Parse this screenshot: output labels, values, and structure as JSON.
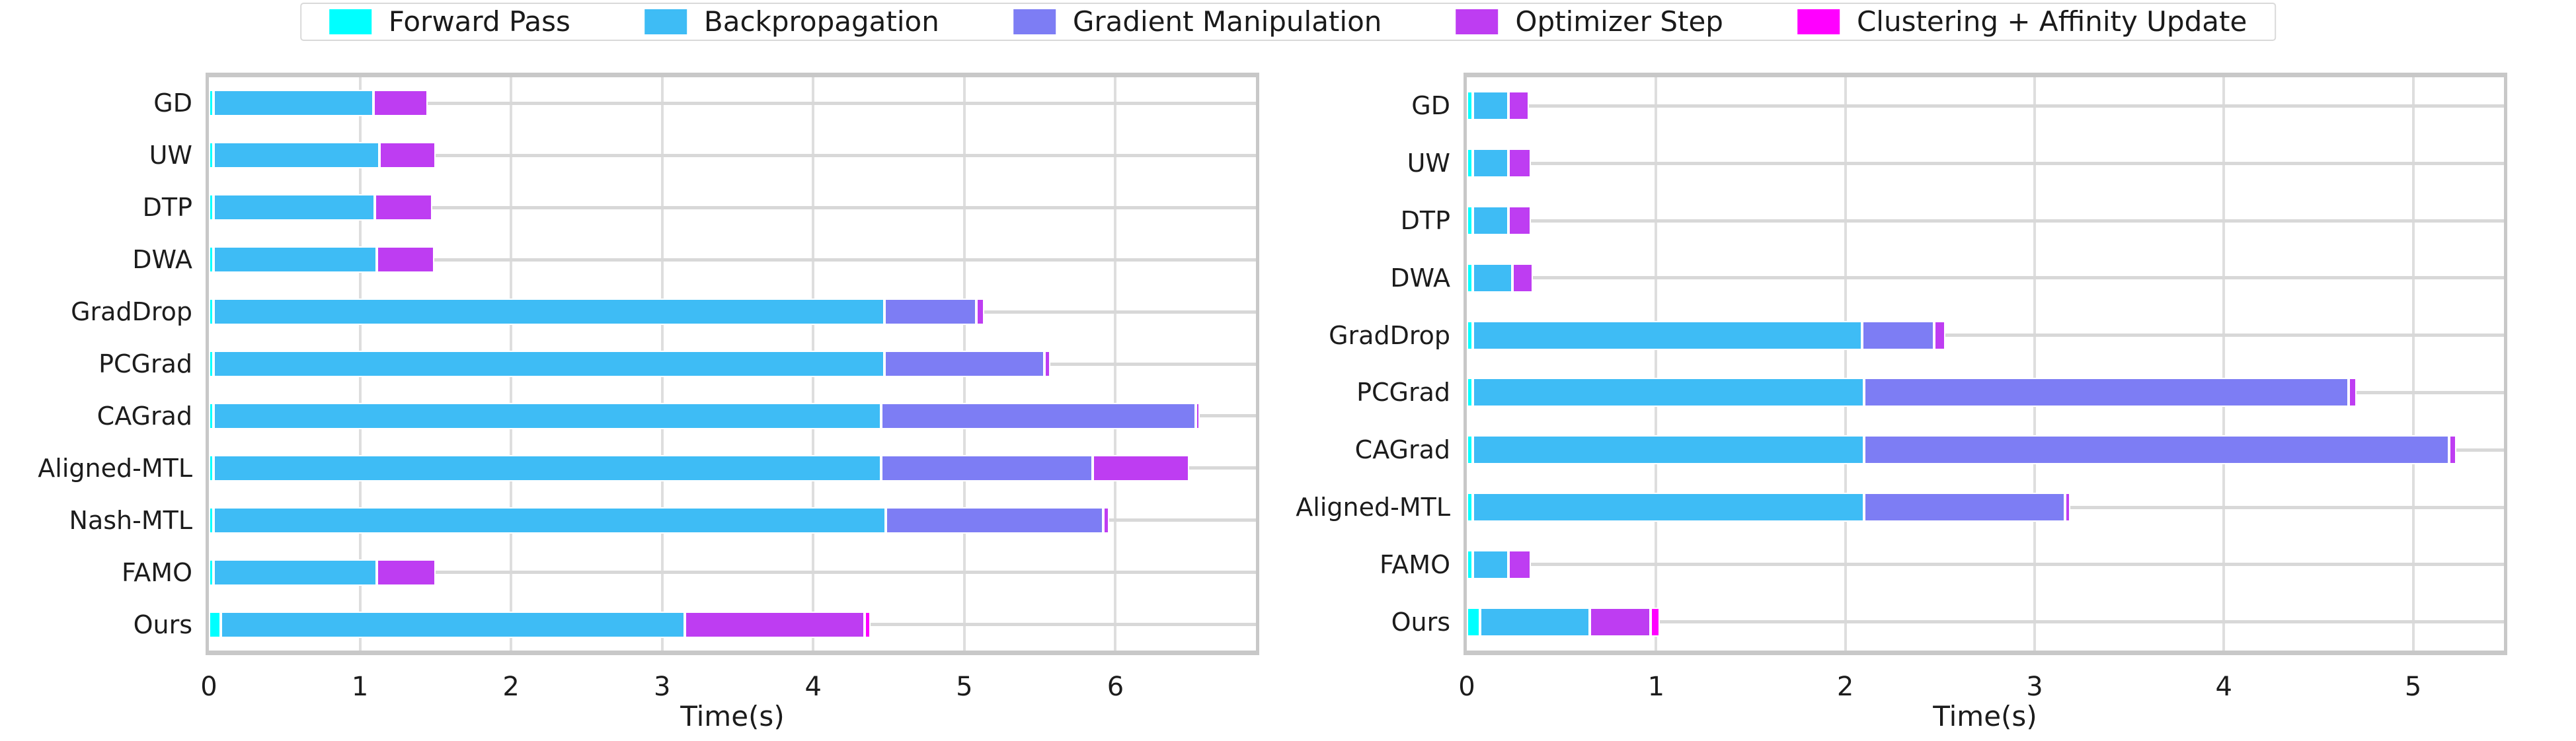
{
  "legend": {
    "items": [
      {
        "label": "Forward Pass",
        "color": "#00FFFF"
      },
      {
        "label": "Backpropagation",
        "color": "#3EBCF5"
      },
      {
        "label": "Gradient Manipulation",
        "color": "#7D7DF4"
      },
      {
        "label": "Optimizer Step",
        "color": "#BE3DF2"
      },
      {
        "label": "Clustering + Affinity Update",
        "color": "#FF00FF"
      }
    ]
  },
  "chart_data": [
    {
      "type": "bar",
      "orientation": "horizontal_stacked",
      "title": "",
      "xlabel": "Time(s)",
      "ylabel": "",
      "xlim": [
        0,
        6.93
      ],
      "xticks": [
        0,
        1,
        2,
        3,
        4,
        5,
        6
      ],
      "grid": true,
      "legend_position": "shared top center",
      "categories": [
        "GD",
        "UW",
        "DTP",
        "DWA",
        "GradDrop",
        "PCGrad",
        "CAGrad",
        "Aligned-MTL",
        "Nash-MTL",
        "FAMO",
        "Ours"
      ],
      "series": [
        {
          "name": "Forward Pass",
          "color": "#00FFFF",
          "values": [
            0.03,
            0.03,
            0.03,
            0.03,
            0.03,
            0.03,
            0.03,
            0.03,
            0.03,
            0.03,
            0.08
          ]
        },
        {
          "name": "Backpropagation",
          "color": "#3EBCF5",
          "values": [
            1.06,
            1.1,
            1.07,
            1.08,
            4.44,
            4.44,
            4.42,
            4.42,
            4.45,
            1.08,
            3.07
          ]
        },
        {
          "name": "Gradient Manipulation",
          "color": "#7D7DF4",
          "values": [
            0,
            0,
            0,
            0,
            0.61,
            1.06,
            2.08,
            1.4,
            1.44,
            0,
            0
          ]
        },
        {
          "name": "Optimizer Step",
          "color": "#BE3DF2",
          "values": [
            0.36,
            0.37,
            0.38,
            0.38,
            0.05,
            0.04,
            0.03,
            0.64,
            0.04,
            0.39,
            1.19
          ]
        },
        {
          "name": "Clustering + Affinity Update",
          "color": "#FF00FF",
          "values": [
            0,
            0,
            0,
            0,
            0,
            0,
            0,
            0,
            0,
            0,
            0.04
          ]
        }
      ],
      "totals": [
        1.45,
        1.5,
        1.48,
        1.49,
        5.13,
        5.57,
        6.56,
        6.49,
        5.96,
        1.5,
        4.38
      ]
    },
    {
      "type": "bar",
      "orientation": "horizontal_stacked",
      "title": "",
      "xlabel": "Time(s)",
      "ylabel": "",
      "xlim": [
        0,
        5.48
      ],
      "xticks": [
        0,
        1,
        2,
        3,
        4,
        5
      ],
      "grid": true,
      "legend_position": "shared top center",
      "categories": [
        "GD",
        "UW",
        "DTP",
        "DWA",
        "GradDrop",
        "PCGrad",
        "CAGrad",
        "Aligned-MTL",
        "FAMO",
        "Ours"
      ],
      "series": [
        {
          "name": "Forward Pass",
          "color": "#00FFFF",
          "values": [
            0.03,
            0.03,
            0.03,
            0.03,
            0.03,
            0.03,
            0.03,
            0.03,
            0.03,
            0.07
          ]
        },
        {
          "name": "Backpropagation",
          "color": "#3EBCF5",
          "values": [
            0.19,
            0.19,
            0.19,
            0.21,
            2.06,
            2.07,
            2.07,
            2.07,
            0.19,
            0.58
          ]
        },
        {
          "name": "Gradient Manipulation",
          "color": "#7D7DF4",
          "values": [
            0,
            0,
            0,
            0,
            0.38,
            2.56,
            3.09,
            1.06,
            0,
            0
          ]
        },
        {
          "name": "Optimizer Step",
          "color": "#BE3DF2",
          "values": [
            0.11,
            0.12,
            0.12,
            0.11,
            0.06,
            0.04,
            0.04,
            0.03,
            0.12,
            0.32
          ]
        },
        {
          "name": "Clustering + Affinity Update",
          "color": "#FF00FF",
          "values": [
            0,
            0,
            0,
            0,
            0,
            0,
            0,
            0,
            0,
            0.05
          ]
        }
      ],
      "totals": [
        0.33,
        0.34,
        0.34,
        0.35,
        2.53,
        4.7,
        5.23,
        3.19,
        0.34,
        1.02
      ]
    }
  ]
}
